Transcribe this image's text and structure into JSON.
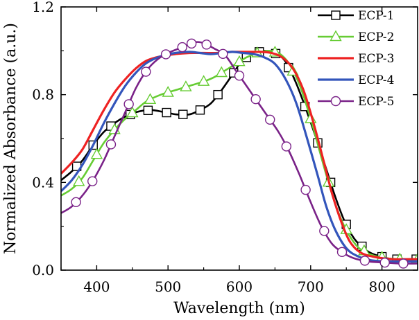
{
  "chart_data": {
    "type": "line",
    "xlabel": "Wavelength (nm)",
    "ylabel": "Normalized Absorbance (a.u.)",
    "xlim": [
      350,
      850
    ],
    "ylim": [
      0.0,
      1.2
    ],
    "x_ticks": [
      400,
      500,
      600,
      700,
      800
    ],
    "x_tick_labels": [
      "400",
      "500",
      "600",
      "700",
      "800"
    ],
    "y_ticks": [
      0.0,
      0.4,
      0.8,
      1.2
    ],
    "y_tick_labels": [
      "0.0",
      "0.4",
      "0.8",
      "1.2"
    ],
    "grid": false,
    "legend_position": "top-right",
    "series": [
      {
        "name": "ECP-1",
        "color": "#000000",
        "marker": "square",
        "points": [
          [
            350,
            0.41
          ],
          [
            365,
            0.45
          ],
          [
            380,
            0.5
          ],
          [
            395,
            0.57
          ],
          [
            410,
            0.63
          ],
          [
            425,
            0.67
          ],
          [
            440,
            0.7
          ],
          [
            455,
            0.72
          ],
          [
            475,
            0.73
          ],
          [
            495,
            0.72
          ],
          [
            512,
            0.71
          ],
          [
            530,
            0.71
          ],
          [
            545,
            0.73
          ],
          [
            560,
            0.76
          ],
          [
            575,
            0.82
          ],
          [
            590,
            0.89
          ],
          [
            605,
            0.96
          ],
          [
            620,
            0.99
          ],
          [
            635,
            1.0
          ],
          [
            650,
            0.99
          ],
          [
            665,
            0.95
          ],
          [
            680,
            0.85
          ],
          [
            695,
            0.72
          ],
          [
            710,
            0.58
          ],
          [
            722,
            0.46
          ],
          [
            735,
            0.33
          ],
          [
            748,
            0.22
          ],
          [
            762,
            0.14
          ],
          [
            778,
            0.09
          ],
          [
            795,
            0.065
          ],
          [
            815,
            0.05
          ],
          [
            835,
            0.05
          ],
          [
            850,
            0.05
          ]
        ],
        "markers_x": [
          372,
          395,
          420,
          447,
          472,
          498,
          521,
          545,
          570,
          592,
          610,
          628,
          651,
          669,
          692,
          710,
          728,
          750,
          772,
          800,
          821,
          848
        ]
      },
      {
        "name": "ECP-2",
        "color": "#66cc33",
        "marker": "triangle",
        "points": [
          [
            350,
            0.34
          ],
          [
            365,
            0.37
          ],
          [
            380,
            0.42
          ],
          [
            395,
            0.5
          ],
          [
            410,
            0.58
          ],
          [
            425,
            0.64
          ],
          [
            440,
            0.69
          ],
          [
            455,
            0.73
          ],
          [
            470,
            0.77
          ],
          [
            490,
            0.8
          ],
          [
            510,
            0.82
          ],
          [
            530,
            0.84
          ],
          [
            550,
            0.86
          ],
          [
            565,
            0.88
          ],
          [
            580,
            0.91
          ],
          [
            595,
            0.94
          ],
          [
            610,
            0.97
          ],
          [
            625,
            0.99
          ],
          [
            640,
            1.0
          ],
          [
            655,
            0.99
          ],
          [
            670,
            0.94
          ],
          [
            685,
            0.84
          ],
          [
            700,
            0.69
          ],
          [
            712,
            0.55
          ],
          [
            725,
            0.4
          ],
          [
            738,
            0.27
          ],
          [
            752,
            0.17
          ],
          [
            768,
            0.1
          ],
          [
            785,
            0.07
          ],
          [
            805,
            0.055
          ],
          [
            825,
            0.05
          ],
          [
            850,
            0.05
          ]
        ],
        "markers_x": [
          375,
          400,
          425,
          450,
          475,
          500,
          525,
          550,
          575,
          600,
          625,
          650,
          675,
          700,
          725,
          750,
          775,
          800,
          825,
          850
        ]
      },
      {
        "name": "ECP-3",
        "color": "#ee2222",
        "marker": "none",
        "points": [
          [
            350,
            0.44
          ],
          [
            365,
            0.49
          ],
          [
            380,
            0.55
          ],
          [
            395,
            0.64
          ],
          [
            410,
            0.73
          ],
          [
            425,
            0.81
          ],
          [
            440,
            0.87
          ],
          [
            455,
            0.92
          ],
          [
            470,
            0.955
          ],
          [
            490,
            0.975
          ],
          [
            510,
            0.985
          ],
          [
            530,
            0.99
          ],
          [
            550,
            0.99
          ],
          [
            570,
            0.99
          ],
          [
            590,
            0.995
          ],
          [
            610,
            0.995
          ],
          [
            630,
            0.995
          ],
          [
            645,
            0.99
          ],
          [
            660,
            0.97
          ],
          [
            675,
            0.92
          ],
          [
            690,
            0.82
          ],
          [
            705,
            0.66
          ],
          [
            718,
            0.5
          ],
          [
            730,
            0.35
          ],
          [
            743,
            0.22
          ],
          [
            755,
            0.13
          ],
          [
            770,
            0.08
          ],
          [
            790,
            0.06
          ],
          [
            815,
            0.05
          ],
          [
            850,
            0.05
          ]
        ]
      },
      {
        "name": "ECP-4",
        "color": "#3355bb",
        "marker": "none",
        "points": [
          [
            350,
            0.36
          ],
          [
            365,
            0.41
          ],
          [
            380,
            0.48
          ],
          [
            395,
            0.57
          ],
          [
            410,
            0.67
          ],
          [
            425,
            0.76
          ],
          [
            440,
            0.84
          ],
          [
            455,
            0.9
          ],
          [
            470,
            0.945
          ],
          [
            490,
            0.975
          ],
          [
            510,
            0.99
          ],
          [
            530,
            0.995
          ],
          [
            545,
            0.99
          ],
          [
            560,
            0.985
          ],
          [
            575,
            0.99
          ],
          [
            590,
            0.995
          ],
          [
            605,
            0.99
          ],
          [
            620,
            0.985
          ],
          [
            635,
            0.97
          ],
          [
            650,
            0.94
          ],
          [
            665,
            0.87
          ],
          [
            680,
            0.76
          ],
          [
            695,
            0.6
          ],
          [
            710,
            0.43
          ],
          [
            722,
            0.29
          ],
          [
            735,
            0.18
          ],
          [
            750,
            0.1
          ],
          [
            765,
            0.065
          ],
          [
            785,
            0.045
          ],
          [
            810,
            0.04
          ],
          [
            850,
            0.04
          ]
        ]
      },
      {
        "name": "ECP-5",
        "color": "#7a2288",
        "marker": "circle",
        "points": [
          [
            350,
            0.26
          ],
          [
            365,
            0.29
          ],
          [
            380,
            0.34
          ],
          [
            395,
            0.41
          ],
          [
            410,
            0.5
          ],
          [
            425,
            0.61
          ],
          [
            440,
            0.72
          ],
          [
            455,
            0.83
          ],
          [
            470,
            0.91
          ],
          [
            485,
            0.96
          ],
          [
            500,
            0.99
          ],
          [
            515,
            1.01
          ],
          [
            530,
            1.03
          ],
          [
            540,
            1.04
          ],
          [
            550,
            1.035
          ],
          [
            565,
            1.01
          ],
          [
            580,
            0.98
          ],
          [
            595,
            0.91
          ],
          [
            610,
            0.84
          ],
          [
            625,
            0.77
          ],
          [
            640,
            0.7
          ],
          [
            655,
            0.63
          ],
          [
            670,
            0.54
          ],
          [
            685,
            0.43
          ],
          [
            700,
            0.31
          ],
          [
            715,
            0.2
          ],
          [
            730,
            0.12
          ],
          [
            745,
            0.08
          ],
          [
            760,
            0.055
          ],
          [
            780,
            0.04
          ],
          [
            800,
            0.035
          ],
          [
            825,
            0.03
          ],
          [
            850,
            0.03
          ]
        ],
        "markers_x": [
          371,
          394,
          420,
          445,
          469,
          497,
          520,
          533,
          554,
          577,
          600,
          623,
          643,
          666,
          693,
          719,
          744,
          776,
          804,
          830
        ]
      }
    ]
  }
}
